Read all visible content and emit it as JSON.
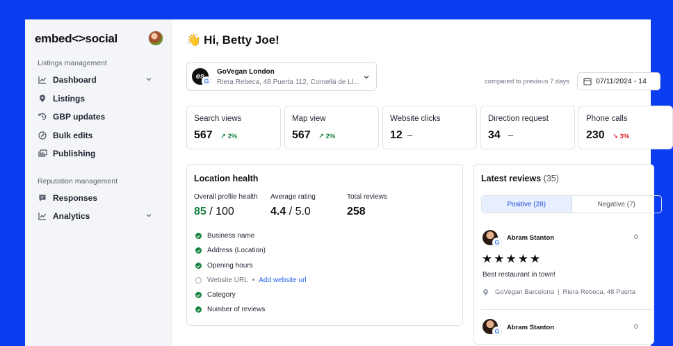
{
  "sidebar": {
    "logo": "embed<>social",
    "sections": [
      {
        "title": "Listings management"
      },
      {
        "title": "Reputation management"
      }
    ],
    "items": [
      {
        "label": "Dashboard",
        "icon": "chart-line-icon"
      },
      {
        "label": "Listings",
        "icon": "location-pin-icon"
      },
      {
        "label": "GBP updates",
        "icon": "history-icon"
      },
      {
        "label": "Bulk edits",
        "icon": "edit-icon"
      },
      {
        "label": "Publishing",
        "icon": "gallery-icon"
      },
      {
        "label": "Responses",
        "icon": "message-icon"
      },
      {
        "label": "Analytics",
        "icon": "chart-line-icon"
      }
    ]
  },
  "header": {
    "greeting": "Hi, Betty Joe!",
    "wave": "👋"
  },
  "location": {
    "logo_text": "es",
    "name": "GoVegan London",
    "address": "Riera Rebeca, 48 Puerta 112, Cornellá de Ll..."
  },
  "comparison": {
    "label": "compared to previous 7 days",
    "date": "07/11/2024 - 14"
  },
  "stats": [
    {
      "label": "Search views",
      "value": "567",
      "change": "↗ 2%",
      "trend": "up"
    },
    {
      "label": "Map view",
      "value": "567",
      "change": "↗ 2%",
      "trend": "up"
    },
    {
      "label": "Website clicks",
      "value": "12",
      "change": "–",
      "trend": "none"
    },
    {
      "label": "Direction request",
      "value": "34",
      "change": "–",
      "trend": "none"
    },
    {
      "label": "Phone calls",
      "value": "230",
      "change": "↘ 3%",
      "trend": "down"
    }
  ],
  "health": {
    "title": "Location health",
    "metrics": [
      {
        "label": "Overall profile health",
        "value": "85",
        "suffix": " / 100"
      },
      {
        "label": "Average rating",
        "value": "4.4",
        "suffix": " / 5.0"
      },
      {
        "label": "Total reviews",
        "value": "258",
        "suffix": ""
      }
    ],
    "checklist": [
      {
        "label": "Business name",
        "done": true
      },
      {
        "label": "Address (Location)",
        "done": true
      },
      {
        "label": "Opening hours",
        "done": true
      },
      {
        "label": "Website URL",
        "done": false,
        "action": "Add website url"
      },
      {
        "label": "Category",
        "done": true
      },
      {
        "label": "Number of reviews",
        "done": true
      }
    ]
  },
  "reviews": {
    "title": "Latest reviews",
    "count": "(35)",
    "tabs": [
      "Positive (28)",
      "Negative (7)"
    ],
    "items": [
      {
        "name": "Abram Stanton",
        "num": "0",
        "stars": "★★★★★",
        "text": "Best restaurant in town!",
        "location": "GoVegan Barcelona",
        "address": "Riera Rebeca, 48 Puerta"
      },
      {
        "name": "Abram Stanton",
        "num": "0"
      }
    ]
  }
}
